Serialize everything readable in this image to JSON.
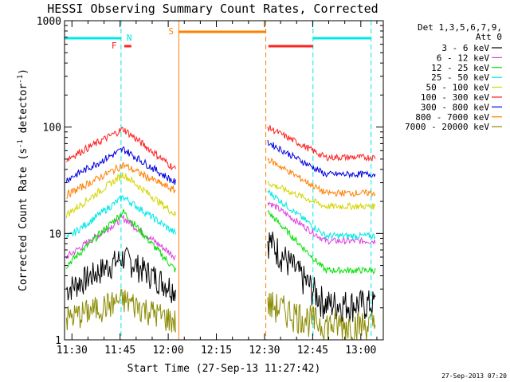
{
  "chart_data": {
    "type": "line",
    "title": "HESSI Observing Summary Count Rates, Corrected",
    "xlabel": "Start Time (27-Sep-13 11:27:42)",
    "ylabel_main": "Corrected Count Rate (s",
    "ylabel_sup1": "-1",
    "ylabel_mid": " detector",
    "ylabel_sup2": "-1",
    "ylabel_end": ")",
    "y_scale": "log",
    "ylim": [
      1,
      1000
    ],
    "x_range_minutes": [
      11.5,
      13.1
    ],
    "x_ticks": [
      "11:30",
      "11:45",
      "12:00",
      "12:15",
      "12:30",
      "12:45",
      "13:00"
    ],
    "y_ticks": [
      "1",
      "10",
      "100",
      "1000"
    ],
    "legend_header": [
      "Det 1,3,5,6,7,9,",
      "Att 0"
    ],
    "legend_position": "right",
    "data_gap": [
      "12:03",
      "12:30"
    ],
    "series": [
      {
        "name": "3 - 6 keV",
        "color": "#000000"
      },
      {
        "name": "6 - 12 keV",
        "color": "#e040e0"
      },
      {
        "name": "12 - 25 keV",
        "color": "#00e000"
      },
      {
        "name": "25 - 50 keV",
        "color": "#00e8e8"
      },
      {
        "name": "50 - 100 keV",
        "color": "#d4d400"
      },
      {
        "name": "100 - 300 keV",
        "color": "#ff2020"
      },
      {
        "name": "300 - 800 keV",
        "color": "#0000e0"
      },
      {
        "name": "800 - 7000 keV",
        "color": "#ff8000"
      },
      {
        "name": "7000 - 20000 keV",
        "color": "#8a8a00"
      }
    ],
    "flags": {
      "night_marker": "N",
      "flare_marker": "F",
      "saa_marker": "S"
    },
    "timestamp": "27-Sep-2013 07:20"
  }
}
